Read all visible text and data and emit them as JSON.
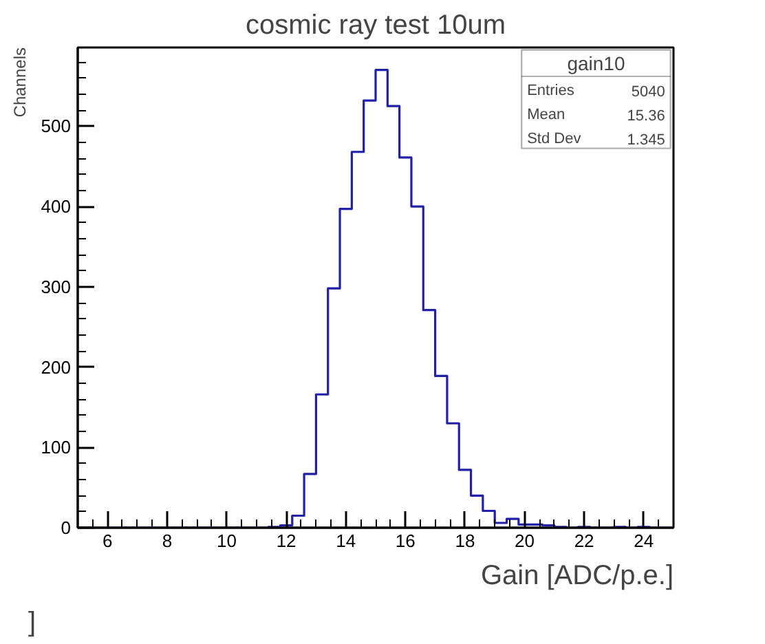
{
  "chart_data": {
    "type": "histogram",
    "title": "cosmic ray test 10um",
    "xlabel": "Gain [ADC/p.e.]",
    "ylabel": "Channels",
    "bins": [
      5.0,
      5.4,
      5.8,
      6.2,
      6.6,
      7.0,
      7.4,
      7.8,
      8.2,
      8.6,
      9.0,
      9.4,
      9.8,
      10.2,
      10.6,
      11.0,
      11.4,
      11.8,
      12.2,
      12.6,
      13.0,
      13.4,
      13.8,
      14.2,
      14.6,
      15.0,
      15.4,
      15.8,
      16.2,
      16.6,
      17.0,
      17.4,
      17.8,
      18.2,
      18.6,
      19.0,
      19.4,
      19.8,
      20.2,
      20.6,
      21.0,
      21.4,
      21.8,
      22.2,
      22.6,
      23.0,
      23.4,
      23.8,
      24.2,
      24.6,
      25.0
    ],
    "values": [
      0,
      0,
      0,
      0,
      0,
      0,
      0,
      0,
      0,
      0,
      0,
      0,
      0,
      0,
      0,
      0,
      1,
      3,
      15,
      67,
      166,
      298,
      397,
      468,
      532,
      570,
      525,
      461,
      400,
      271,
      189,
      130,
      72,
      40,
      21,
      6,
      11,
      4,
      4,
      3,
      1,
      0,
      1,
      0,
      0,
      1,
      0,
      1,
      0,
      0
    ],
    "color": "#2020a8",
    "xlim": [
      5,
      25
    ],
    "ylim": [
      0,
      598
    ],
    "xticks": [
      6,
      8,
      10,
      12,
      14,
      16,
      18,
      20,
      22,
      24
    ],
    "yticks": [
      0,
      100,
      200,
      300,
      400,
      500
    ],
    "grid": false,
    "legend": false,
    "annotations": [
      "gain10",
      "Entries",
      "5040",
      "Mean",
      "15.36",
      "Std Dev",
      "1.345",
      "]"
    ]
  }
}
